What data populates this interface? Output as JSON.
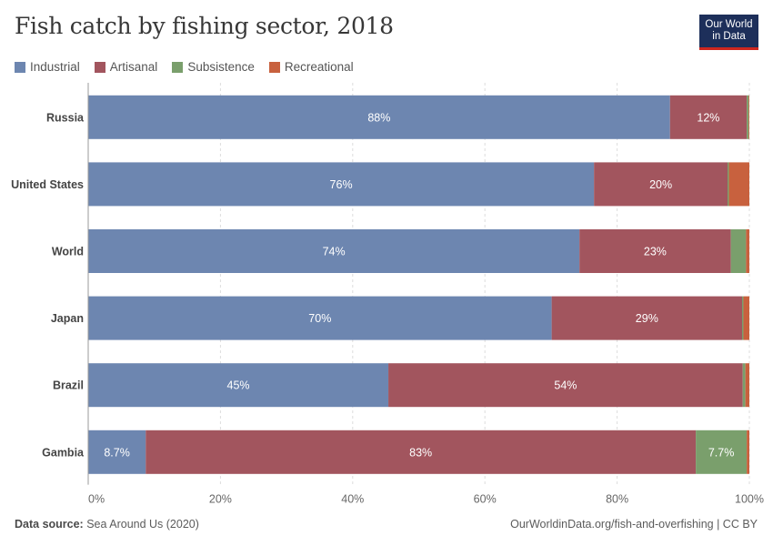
{
  "header": {
    "title": "Fish catch by fishing sector, 2018",
    "logo_line1": "Our World",
    "logo_line2": "in Data"
  },
  "footer": {
    "source_label": "Data source:",
    "source_text": "Sea Around Us (2020)",
    "right_text": "OurWorldinData.org/fish-and-overfishing | CC BY"
  },
  "chart_data": {
    "type": "bar",
    "orientation": "horizontal",
    "stacked": true,
    "title": "Fish catch by fishing sector, 2018",
    "categories": [
      "Russia",
      "United States",
      "World",
      "Japan",
      "Brazil",
      "Gambia"
    ],
    "series": [
      {
        "name": "Industrial",
        "color": "#6d86b0",
        "values": [
          88,
          76.5,
          74.3,
          70.1,
          45.4,
          8.7
        ],
        "labels": [
          "88%",
          "76%",
          "74%",
          "70%",
          "45%",
          "8.7%"
        ]
      },
      {
        "name": "Artisanal",
        "color": "#a2555e",
        "values": [
          11.6,
          20.2,
          22.9,
          28.8,
          53.6,
          83.2
        ],
        "labels": [
          "12%",
          "20%",
          "23%",
          "29%",
          "54%",
          "83%"
        ]
      },
      {
        "name": "Subsistence",
        "color": "#7a9f6c",
        "values": [
          0.3,
          0.2,
          2.3,
          0.2,
          0.4,
          7.7
        ],
        "labels": [
          "",
          "",
          "",
          "",
          "",
          "7.7%"
        ]
      },
      {
        "name": "Recreational",
        "color": "#c8613e",
        "values": [
          0.1,
          3.1,
          0.5,
          0.9,
          0.6,
          0.4
        ],
        "labels": [
          "",
          "",
          "",
          "",
          "",
          ""
        ]
      }
    ],
    "xlim": [
      0,
      100
    ],
    "xticks": [
      "0%",
      "20%",
      "40%",
      "60%",
      "80%",
      "100%"
    ],
    "grid": true,
    "legend_position": "top-left"
  }
}
